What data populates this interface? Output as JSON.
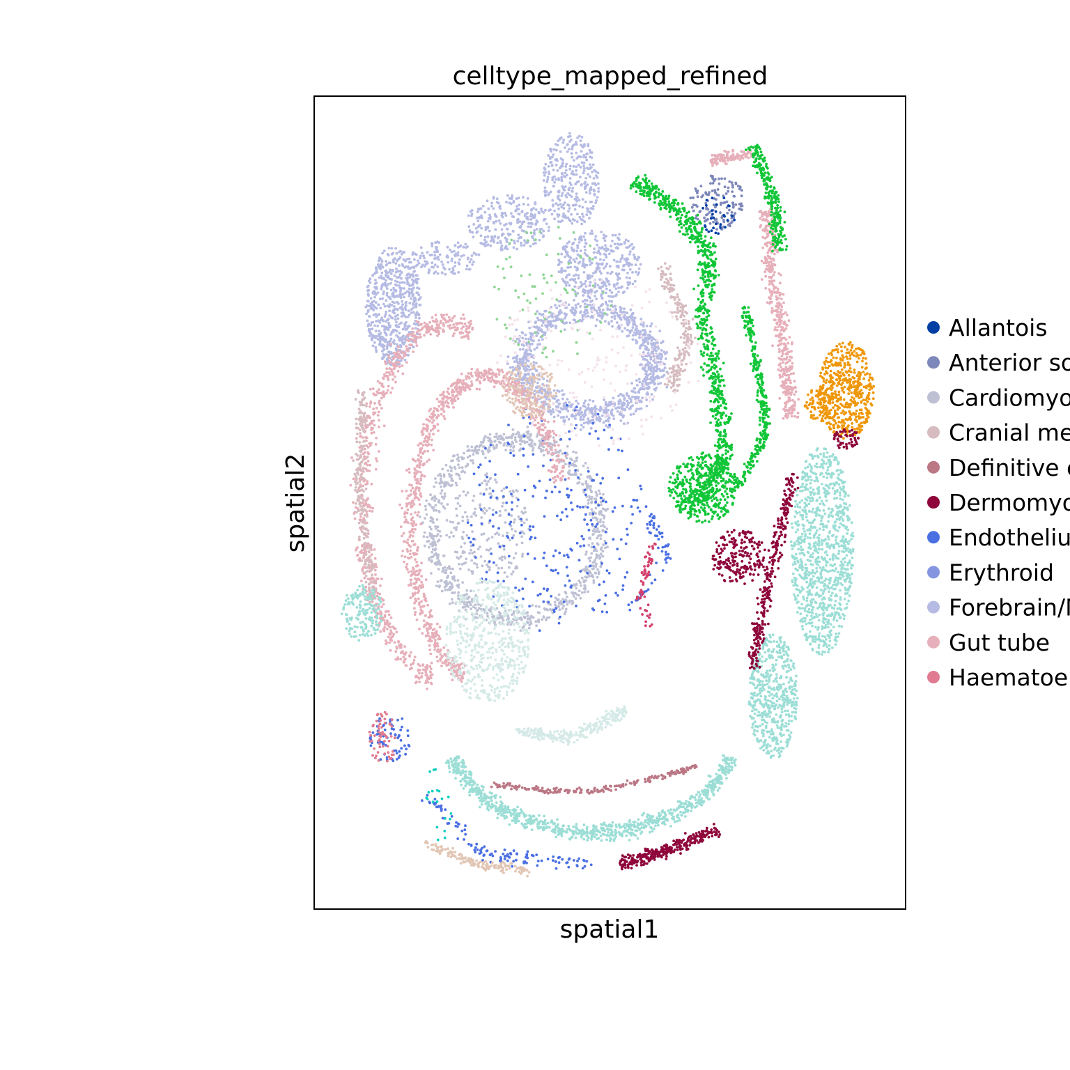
{
  "chart_data": {
    "type": "scatter",
    "title": "celltype_mapped_refined",
    "xlabel": "spatial1",
    "ylabel": "spatial2",
    "xticks": [],
    "yticks": [],
    "grid": false,
    "legend_position": "right",
    "legend": [
      {
        "label": "Allantois",
        "color": "#023fa5"
      },
      {
        "label": "Anterior somitic tissues",
        "color": "#7d87b9"
      },
      {
        "label": "Cardiomyocytes",
        "color": "#bec1d4"
      },
      {
        "label": "Cranial mesoderm",
        "color": "#d6bcc0"
      },
      {
        "label": "Definitive endoderm",
        "color": "#bb7784"
      },
      {
        "label": "Dermomyotome",
        "color": "#8e063b"
      },
      {
        "label": "Endothelium",
        "color": "#4a6fe3"
      },
      {
        "label": "Erythroid",
        "color": "#8595e1"
      },
      {
        "label": "Forebrain/Midbrain/Hindbrain",
        "color": "#b5bbe3"
      },
      {
        "label": "Gut tube",
        "color": "#e6afb9"
      },
      {
        "label": "Haematoendothelial progenitors",
        "color": "#e07b91"
      }
    ],
    "extra_colors": {
      "neural_tube": "#11c638",
      "lateral_plate": "#ef9708",
      "mesenchyme": "#9cded6",
      "surface_ectoderm": "#d5eae7",
      "spinal_cord": "#8dd593",
      "splanchnic": "#f3e1eb",
      "sclerotome": "#e2c6b5",
      "intermediate": "#d33f6a",
      "misc": "#0fcfc0"
    }
  }
}
